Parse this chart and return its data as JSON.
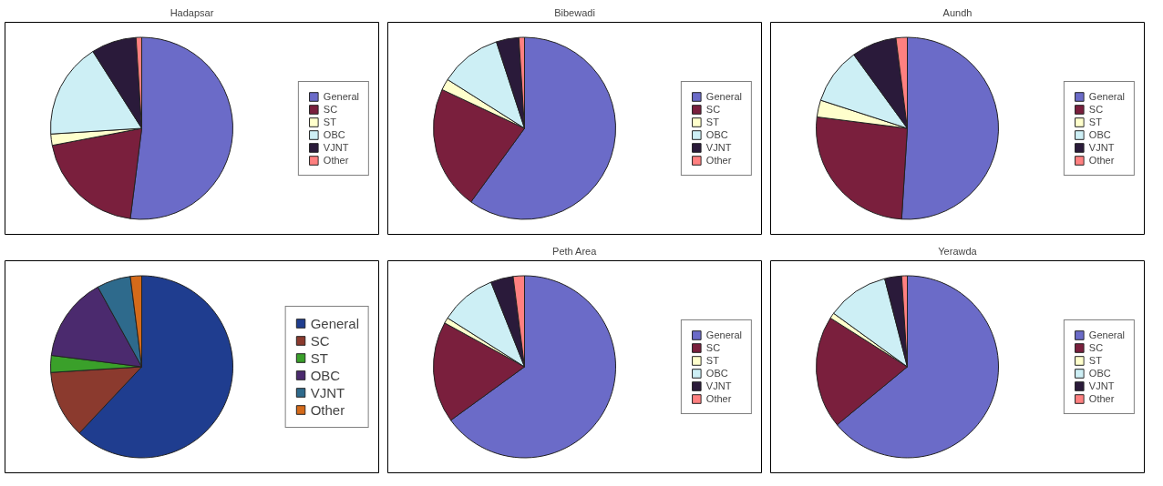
{
  "chart_data": [
    {
      "type": "pie",
      "title": "Hadapsar",
      "categories": [
        "General",
        "SC",
        "ST",
        "OBC",
        "VJNT",
        "Other"
      ],
      "values": [
        52,
        20,
        2,
        17,
        8,
        1
      ],
      "colors": [
        "#6b6bc8",
        "#7a1f3d",
        "#ffffcc",
        "#cdeff5",
        "#2a1a3a",
        "#ff8080"
      ],
      "legend": "right"
    },
    {
      "type": "pie",
      "title": "Bibewadi",
      "categories": [
        "General",
        "SC",
        "ST",
        "OBC",
        "VJNT",
        "Other"
      ],
      "values": [
        60,
        22,
        2,
        11,
        4,
        1
      ],
      "colors": [
        "#6b6bc8",
        "#7a1f3d",
        "#ffffcc",
        "#cdeff5",
        "#2a1a3a",
        "#ff8080"
      ],
      "legend": "right"
    },
    {
      "type": "pie",
      "title": "Aundh",
      "categories": [
        "General",
        "SC",
        "ST",
        "OBC",
        "VJNT",
        "Other"
      ],
      "values": [
        51,
        26,
        3,
        10,
        8,
        2
      ],
      "colors": [
        "#6b6bc8",
        "#7a1f3d",
        "#ffffcc",
        "#cdeff5",
        "#2a1a3a",
        "#ff8080"
      ],
      "legend": "right"
    },
    {
      "type": "pie",
      "categories": [
        "General",
        "SC",
        "ST",
        "OBC",
        "VJNT",
        "Other"
      ],
      "values": [
        62,
        12,
        3,
        15,
        6,
        2
      ],
      "colors": [
        "#1f3d8f",
        "#8b3a2e",
        "#3aa02a",
        "#4b2a6e",
        "#2e6a8c",
        "#d46a1a"
      ],
      "legend": "right"
    },
    {
      "type": "pie",
      "title": "Peth Area",
      "categories": [
        "General",
        "SC",
        "ST",
        "OBC",
        "VJNT",
        "Other"
      ],
      "values": [
        65,
        18,
        1,
        10,
        4,
        2
      ],
      "colors": [
        "#6b6bc8",
        "#7a1f3d",
        "#ffffcc",
        "#cdeff5",
        "#2a1a3a",
        "#ff8080"
      ],
      "legend": "right"
    },
    {
      "type": "pie",
      "title": "Yerawda",
      "categories": [
        "General",
        "SC",
        "ST",
        "OBC",
        "VJNT",
        "Other"
      ],
      "values": [
        64,
        20,
        1,
        11,
        3,
        1
      ],
      "colors": [
        "#6b6bc8",
        "#7a1f3d",
        "#ffffcc",
        "#cdeff5",
        "#2a1a3a",
        "#ff8080"
      ],
      "legend": "right"
    }
  ]
}
